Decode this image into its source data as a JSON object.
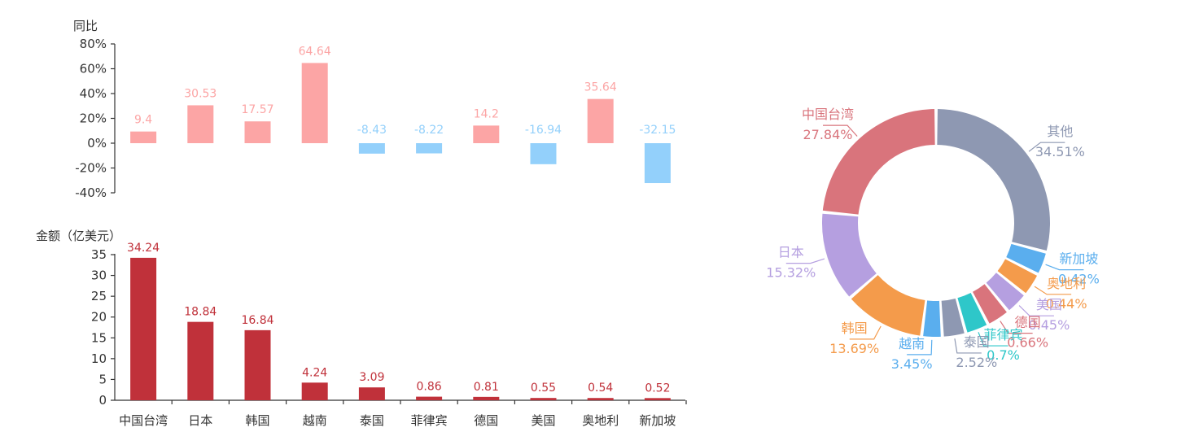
{
  "chart_data": [
    {
      "type": "bar",
      "ylabel": "同比",
      "categories": [
        "中国台湾",
        "日本",
        "韩国",
        "越南",
        "泰国",
        "菲律宾",
        "德国",
        "美国",
        "奥地利",
        "新加坡"
      ],
      "values": [
        9.4,
        30.53,
        17.57,
        64.64,
        -8.43,
        -8.22,
        14.2,
        -16.94,
        35.64,
        -32.15
      ],
      "value_labels": [
        "9.4",
        "30.53",
        "17.57",
        "64.64",
        "-8.43",
        "-8.22",
        "14.2",
        "-16.94",
        "35.64",
        "-32.15"
      ],
      "ylim": [
        -40,
        80
      ],
      "ticks": [
        -40,
        -20,
        0,
        20,
        40,
        60,
        80
      ],
      "tick_labels": [
        "-40%",
        "-20%",
        "0%",
        "20%",
        "40%",
        "60%",
        "80%"
      ],
      "colors": {
        "positive": "#fca5a5",
        "negative": "#93d0fb"
      }
    },
    {
      "type": "bar",
      "ylabel": "金额（亿美元）",
      "categories": [
        "中国台湾",
        "日本",
        "韩国",
        "越南",
        "泰国",
        "菲律宾",
        "德国",
        "美国",
        "奥地利",
        "新加坡"
      ],
      "values": [
        34.24,
        18.84,
        16.84,
        4.24,
        3.09,
        0.86,
        0.81,
        0.55,
        0.54,
        0.52
      ],
      "value_labels": [
        "34.24",
        "18.84",
        "16.84",
        "4.24",
        "3.09",
        "0.86",
        "0.81",
        "0.55",
        "0.54",
        "0.52"
      ],
      "ylim": [
        0,
        35
      ],
      "ticks": [
        0,
        5,
        10,
        15,
        20,
        25,
        30,
        35
      ],
      "tick_labels": [
        "0",
        "5",
        "10",
        "15",
        "20",
        "25",
        "30",
        "35"
      ],
      "colors": {
        "bar": "#c0313a",
        "label": "#c0313a"
      }
    },
    {
      "type": "pie",
      "donut": true,
      "slices": [
        {
          "name": "其他",
          "value": 34.51,
          "label": "34.51%",
          "color": "#8e98b2"
        },
        {
          "name": "新加坡",
          "value": 0.42,
          "label": "0.42%",
          "color": "#5aaeee"
        },
        {
          "name": "奥地利",
          "value": 0.44,
          "label": "0.44%",
          "color": "#f49b4b"
        },
        {
          "name": "美国",
          "value": 0.45,
          "label": "0.45%",
          "color": "#b59fe0"
        },
        {
          "name": "德国",
          "value": 0.66,
          "label": "0.66%",
          "color": "#d9747c"
        },
        {
          "name": "菲律宾",
          "value": 0.7,
          "label": "0.7%",
          "color": "#2ec7c9"
        },
        {
          "name": "泰国",
          "value": 2.52,
          "label": "2.52%",
          "color": "#8e98b2"
        },
        {
          "name": "越南",
          "value": 3.45,
          "label": "3.45%",
          "color": "#5aaeee"
        },
        {
          "name": "韩国",
          "value": 13.69,
          "label": "13.69%",
          "color": "#f49b4b"
        },
        {
          "name": "日本",
          "value": 15.32,
          "label": "15.32%",
          "color": "#b59fe0"
        },
        {
          "name": "中国台湾",
          "value": 27.84,
          "label": "27.84%",
          "color": "#d9747c"
        }
      ]
    }
  ]
}
